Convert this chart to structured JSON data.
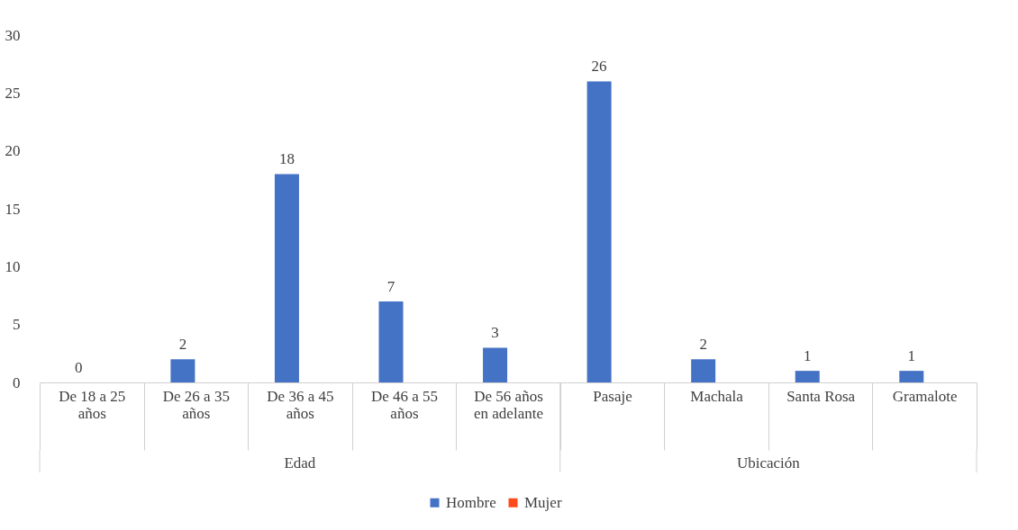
{
  "chart_data": {
    "type": "bar",
    "categories": [
      "De 18 a 25 años",
      "De 26 a 35 años",
      "De 36 a 45 años",
      "De 46 a 55 años",
      "De 56 años en adelante",
      "Pasaje",
      "Machala",
      "Santa Rosa",
      "Gramalote"
    ],
    "series": [
      {
        "name": "Hombre",
        "color": "#4472c4",
        "values": [
          0,
          2,
          18,
          7,
          3,
          26,
          2,
          1,
          1
        ],
        "value_labels": [
          "0",
          "2",
          "18",
          "7",
          "3",
          "26",
          "2",
          "1",
          "1"
        ]
      },
      {
        "name": "Mujer",
        "color": "#ff4a1c",
        "values": [
          0,
          0,
          0,
          0,
          0,
          0,
          0,
          0,
          0
        ]
      }
    ],
    "annotations": [
      "Edad",
      "Ubicación"
    ],
    "ylim": [
      0,
      30
    ],
    "yticks": [
      0,
      5,
      10,
      15,
      20,
      25,
      30
    ],
    "grid": false,
    "legend": "bottom"
  }
}
